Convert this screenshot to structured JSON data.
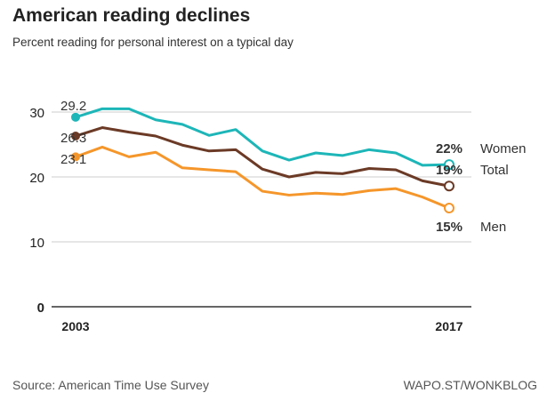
{
  "title": "American reading declines",
  "subtitle": "Percent reading for personal interest on a typical day",
  "source": "Source: American Time Use Survey",
  "credit": "WAPO.ST/WONKBLOG",
  "chart_data": {
    "type": "line",
    "title": "American reading declines",
    "subtitle": "Percent reading for personal interest on a typical day",
    "x": [
      2003,
      2004,
      2005,
      2006,
      2007,
      2008,
      2009,
      2010,
      2011,
      2012,
      2013,
      2014,
      2015,
      2016,
      2017
    ],
    "x_tick_labels": [
      "2003",
      "2017"
    ],
    "y_ticks": [
      0,
      10,
      20,
      30
    ],
    "ylim": [
      0,
      31
    ],
    "grid": "horizontal",
    "legend": "right, end-of-line labels",
    "series": [
      {
        "name": "Women",
        "color": "#1db6b8",
        "start_label": "29.2",
        "end_label": "22%",
        "values": [
          29.2,
          30.5,
          30.5,
          28.8,
          28.1,
          26.4,
          27.3,
          24.0,
          22.6,
          23.7,
          23.3,
          24.2,
          23.7,
          21.8,
          21.9
        ]
      },
      {
        "name": "Total",
        "color": "#6b3a26",
        "start_label": "26.3",
        "end_label": "19%",
        "values": [
          26.3,
          27.6,
          26.9,
          26.3,
          24.9,
          24.0,
          24.2,
          21.2,
          20.0,
          20.7,
          20.5,
          21.3,
          21.1,
          19.4,
          18.6
        ]
      },
      {
        "name": "Men",
        "color": "#f5962a",
        "start_label": "23.1",
        "end_label": "15%",
        "values": [
          23.1,
          24.6,
          23.1,
          23.8,
          21.4,
          21.1,
          20.8,
          17.8,
          17.2,
          17.5,
          17.3,
          17.9,
          18.2,
          16.9,
          15.2
        ]
      }
    ]
  }
}
